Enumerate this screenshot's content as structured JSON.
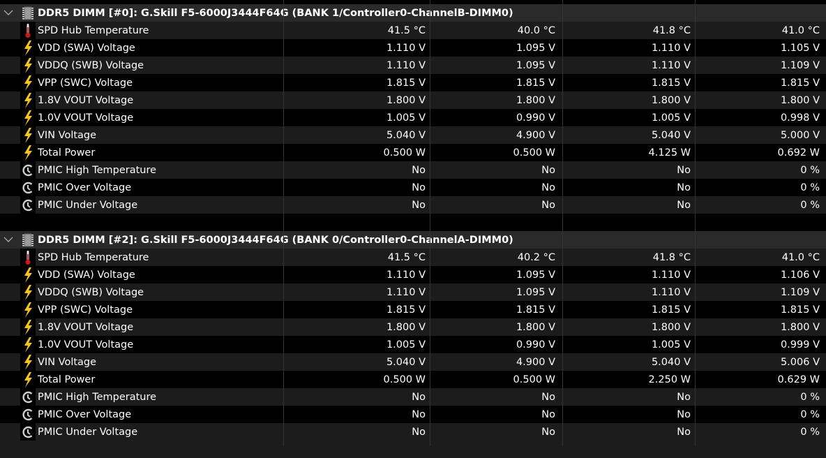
{
  "groups": [
    {
      "title": "DDR5 DIMM [#0]: G.Skill F5-6000J3444F64G (BANK 1/Controller0-ChannelB-DIMM0)",
      "expanded": true,
      "icon": "memory-chip-icon",
      "rows": [
        {
          "label": "SPD Hub Temperature",
          "icon": "thermometer-icon",
          "values": [
            "41.5 °C",
            "40.0 °C",
            "41.8 °C",
            "41.0 °C"
          ]
        },
        {
          "label": "VDD (SWA) Voltage",
          "icon": "lightning-icon",
          "values": [
            "1.110 V",
            "1.095 V",
            "1.110 V",
            "1.105 V"
          ]
        },
        {
          "label": "VDDQ (SWB) Voltage",
          "icon": "lightning-icon",
          "values": [
            "1.110 V",
            "1.095 V",
            "1.110 V",
            "1.109 V"
          ]
        },
        {
          "label": "VPP (SWC) Voltage",
          "icon": "lightning-icon",
          "values": [
            "1.815 V",
            "1.815 V",
            "1.815 V",
            "1.815 V"
          ]
        },
        {
          "label": "1.8V VOUT Voltage",
          "icon": "lightning-icon",
          "values": [
            "1.800 V",
            "1.800 V",
            "1.800 V",
            "1.800 V"
          ]
        },
        {
          "label": "1.0V VOUT Voltage",
          "icon": "lightning-icon",
          "values": [
            "1.005 V",
            "0.990 V",
            "1.005 V",
            "0.998 V"
          ]
        },
        {
          "label": "VIN Voltage",
          "icon": "lightning-icon",
          "values": [
            "5.040 V",
            "4.900 V",
            "5.040 V",
            "5.000 V"
          ]
        },
        {
          "label": "Total Power",
          "icon": "lightning-icon",
          "values": [
            "0.500 W",
            "0.500 W",
            "4.125 W",
            "0.692 W"
          ]
        },
        {
          "label": "PMIC High Temperature",
          "icon": "clock-icon",
          "values": [
            "No",
            "No",
            "No",
            "0 %"
          ]
        },
        {
          "label": "PMIC Over Voltage",
          "icon": "clock-icon",
          "values": [
            "No",
            "No",
            "No",
            "0 %"
          ]
        },
        {
          "label": "PMIC Under Voltage",
          "icon": "clock-icon",
          "values": [
            "No",
            "No",
            "No",
            "0 %"
          ]
        }
      ]
    },
    {
      "title": "DDR5 DIMM [#2]: G.Skill F5-6000J3444F64G (BANK 0/Controller0-ChannelA-DIMM0)",
      "expanded": true,
      "icon": "memory-chip-icon",
      "rows": [
        {
          "label": "SPD Hub Temperature",
          "icon": "thermometer-icon",
          "values": [
            "41.5 °C",
            "40.2 °C",
            "41.8 °C",
            "41.0 °C"
          ]
        },
        {
          "label": "VDD (SWA) Voltage",
          "icon": "lightning-icon",
          "values": [
            "1.110 V",
            "1.095 V",
            "1.110 V",
            "1.106 V"
          ]
        },
        {
          "label": "VDDQ (SWB) Voltage",
          "icon": "lightning-icon",
          "values": [
            "1.110 V",
            "1.095 V",
            "1.110 V",
            "1.109 V"
          ]
        },
        {
          "label": "VPP (SWC) Voltage",
          "icon": "lightning-icon",
          "values": [
            "1.815 V",
            "1.815 V",
            "1.815 V",
            "1.815 V"
          ]
        },
        {
          "label": "1.8V VOUT Voltage",
          "icon": "lightning-icon",
          "values": [
            "1.800 V",
            "1.800 V",
            "1.800 V",
            "1.800 V"
          ]
        },
        {
          "label": "1.0V VOUT Voltage",
          "icon": "lightning-icon",
          "values": [
            "1.005 V",
            "0.990 V",
            "1.005 V",
            "0.999 V"
          ]
        },
        {
          "label": "VIN Voltage",
          "icon": "lightning-icon",
          "values": [
            "5.040 V",
            "4.900 V",
            "5.040 V",
            "5.006 V"
          ]
        },
        {
          "label": "Total Power",
          "icon": "lightning-icon",
          "values": [
            "0.500 W",
            "0.500 W",
            "2.250 W",
            "0.629 W"
          ]
        },
        {
          "label": "PMIC High Temperature",
          "icon": "clock-icon",
          "values": [
            "No",
            "No",
            "No",
            "0 %"
          ]
        },
        {
          "label": "PMIC Over Voltage",
          "icon": "clock-icon",
          "values": [
            "No",
            "No",
            "No",
            "0 %"
          ]
        },
        {
          "label": "PMIC Under Voltage",
          "icon": "clock-icon",
          "values": [
            "No",
            "No",
            "No",
            "0 %"
          ]
        }
      ]
    }
  ],
  "colors": {
    "lightning": "#f5c518",
    "thermometer": "#d01818",
    "row_light": "#1c1c1c",
    "row_dark": "#000000",
    "header": "#2a2a2a"
  }
}
